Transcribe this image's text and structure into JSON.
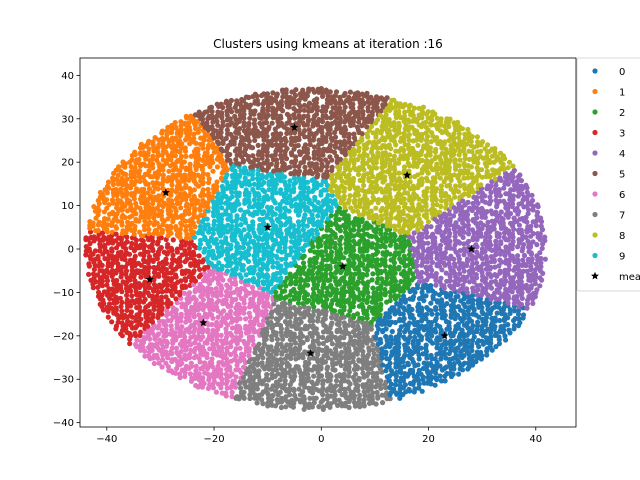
{
  "chart_data": {
    "type": "scatter",
    "title": "Clusters using kmeans at iteration :16",
    "xlabel": "",
    "ylabel": "",
    "xlim": [
      -45,
      47.5
    ],
    "ylim": [
      -41,
      44
    ],
    "xticks": [
      -40,
      -20,
      0,
      20,
      40
    ],
    "yticks": [
      -40,
      -30,
      -20,
      -10,
      0,
      10,
      20,
      30,
      40
    ],
    "grid": false,
    "legend_position": "upper-right outside",
    "series": [
      {
        "name": "0",
        "color": "#1f77b4",
        "center": [
          23,
          -20
        ],
        "spread": [
          9,
          7
        ]
      },
      {
        "name": "1",
        "color": "#ff7f0e",
        "center": [
          -32,
          14
        ],
        "spread": [
          6,
          6
        ]
      },
      {
        "name": "2",
        "color": "#2ca02c",
        "center": [
          5,
          -4
        ],
        "spread": [
          7,
          7
        ]
      },
      {
        "name": "3",
        "color": "#d62728",
        "center": [
          -34,
          -8
        ],
        "spread": [
          4,
          6
        ]
      },
      {
        "name": "4",
        "color": "#9467bd",
        "center": [
          29,
          0
        ],
        "spread": [
          9,
          6
        ]
      },
      {
        "name": "5",
        "color": "#8c564b",
        "center": [
          -5,
          30
        ],
        "spread": [
          11,
          5
        ]
      },
      {
        "name": "6",
        "color": "#e377c2",
        "center": [
          -22,
          -18
        ],
        "spread": [
          7,
          6
        ]
      },
      {
        "name": "7",
        "color": "#7f7f7f",
        "center": [
          -2,
          -25
        ],
        "spread": [
          8,
          7
        ]
      },
      {
        "name": "8",
        "color": "#bcbd22",
        "center": [
          16,
          16
        ],
        "spread": [
          9,
          8
        ]
      },
      {
        "name": "9",
        "color": "#17becf",
        "center": [
          -10,
          5
        ],
        "spread": [
          8,
          8
        ]
      }
    ],
    "means": {
      "name": "means",
      "x": [
        23,
        -29,
        4,
        -32,
        28,
        -5,
        -22,
        -2,
        16,
        -10
      ],
      "y": [
        -20,
        13,
        -4,
        -7,
        0,
        28,
        -17,
        -24,
        17,
        5
      ]
    }
  }
}
